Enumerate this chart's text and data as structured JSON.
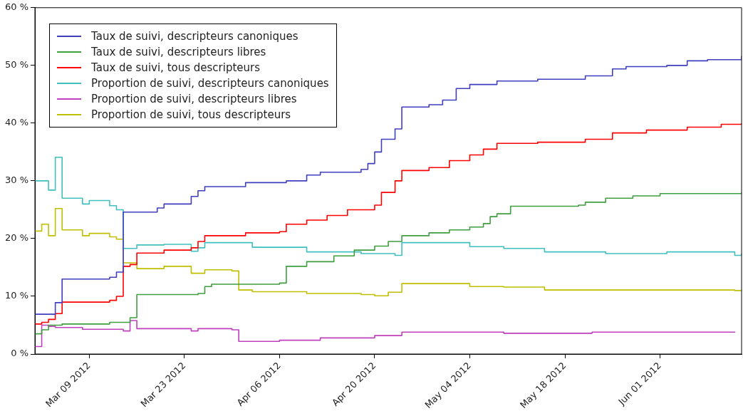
{
  "chart_data": {
    "type": "step",
    "legend": "top left",
    "line_style": "solid",
    "grid": false,
    "xlim": [
      "2012-03-01",
      "2012-06-13"
    ],
    "xticks": [
      {
        "value": "2012-03-09",
        "label": "Mar 09 2012"
      },
      {
        "value": "2012-03-23",
        "label": "Mar 23 2012"
      },
      {
        "value": "2012-04-06",
        "label": "Apr 06 2012"
      },
      {
        "value": "2012-04-20",
        "label": "Apr 20 2012"
      },
      {
        "value": "2012-05-04",
        "label": "May 04 2012"
      },
      {
        "value": "2012-05-18",
        "label": "May 18 2012"
      },
      {
        "value": "2012-06-01",
        "label": "Jun 01 2012"
      }
    ],
    "ylim": [
      0,
      60
    ],
    "yticks": [
      {
        "value": 0,
        "label": "0 %"
      },
      {
        "value": 10,
        "label": "10 %"
      },
      {
        "value": 20,
        "label": "20 %"
      },
      {
        "value": 30,
        "label": "30 %"
      },
      {
        "value": 40,
        "label": "40 %"
      },
      {
        "value": 50,
        "label": "50 %"
      },
      {
        "value": 60,
        "label": "60 %"
      }
    ],
    "series": [
      {
        "name": "Taux de suivi, descripteurs canoniques",
        "color": "#3f3fbf",
        "x": [
          "2012-03-01",
          "2012-03-04",
          "2012-03-05",
          "2012-03-12",
          "2012-03-13",
          "2012-03-14",
          "2012-03-19",
          "2012-03-20",
          "2012-03-24",
          "2012-03-25",
          "2012-03-26",
          "2012-04-01",
          "2012-04-07",
          "2012-04-10",
          "2012-04-12",
          "2012-04-18",
          "2012-04-19",
          "2012-04-20",
          "2012-04-21",
          "2012-04-23",
          "2012-04-24",
          "2012-04-28",
          "2012-04-30",
          "2012-05-02",
          "2012-05-04",
          "2012-05-08",
          "2012-05-14",
          "2012-05-21",
          "2012-05-25",
          "2012-05-27",
          "2012-06-02",
          "2012-06-05",
          "2012-06-08",
          "2012-06-13"
        ],
        "values": [
          6.9,
          8.9,
          13.0,
          13.3,
          14.2,
          24.6,
          25.3,
          26.0,
          27.3,
          28.3,
          29.0,
          29.7,
          30.0,
          31.0,
          31.5,
          32.0,
          33.0,
          35.0,
          37.2,
          39.0,
          42.8,
          43.2,
          44.0,
          46.0,
          46.7,
          47.3,
          47.6,
          48.2,
          49.4,
          49.8,
          50.0,
          50.8,
          51.0,
          51.6
        ]
      },
      {
        "name": "Taux de suivi, descripteurs libres",
        "color": "#3f9f3f",
        "x": [
          "2012-03-01",
          "2012-03-02",
          "2012-03-03",
          "2012-03-05",
          "2012-03-12",
          "2012-03-15",
          "2012-03-16",
          "2012-03-25",
          "2012-03-26",
          "2012-03-27",
          "2012-04-06",
          "2012-04-07",
          "2012-04-10",
          "2012-04-14",
          "2012-04-17",
          "2012-04-20",
          "2012-04-22",
          "2012-04-24",
          "2012-04-28",
          "2012-05-01",
          "2012-05-04",
          "2012-05-06",
          "2012-05-07",
          "2012-05-08",
          "2012-05-10",
          "2012-05-20",
          "2012-05-21",
          "2012-05-24",
          "2012-05-28",
          "2012-06-01",
          "2012-06-13"
        ],
        "values": [
          3.5,
          4.2,
          5.0,
          5.2,
          5.5,
          6.3,
          10.3,
          10.5,
          11.7,
          12.1,
          12.3,
          15.2,
          16.0,
          17.0,
          18.0,
          18.7,
          19.5,
          20.5,
          21.0,
          21.5,
          22.0,
          22.6,
          23.8,
          24.3,
          25.6,
          25.8,
          26.3,
          27.0,
          27.4,
          27.8,
          28.0
        ]
      },
      {
        "name": "Taux de suivi, tous descripteurs",
        "color": "#ff0000",
        "x": [
          "2012-03-01",
          "2012-03-02",
          "2012-03-03",
          "2012-03-04",
          "2012-03-05",
          "2012-03-12",
          "2012-03-13",
          "2012-03-14",
          "2012-03-15",
          "2012-03-16",
          "2012-03-20",
          "2012-03-24",
          "2012-03-25",
          "2012-03-26",
          "2012-04-01",
          "2012-04-06",
          "2012-04-07",
          "2012-04-10",
          "2012-04-13",
          "2012-04-16",
          "2012-04-20",
          "2012-04-21",
          "2012-04-23",
          "2012-04-24",
          "2012-04-28",
          "2012-05-01",
          "2012-05-04",
          "2012-05-06",
          "2012-05-08",
          "2012-05-14",
          "2012-05-21",
          "2012-05-25",
          "2012-05-30",
          "2012-06-05",
          "2012-06-10",
          "2012-06-13"
        ],
        "values": [
          5.2,
          5.5,
          6.0,
          7.0,
          9.0,
          9.3,
          10.0,
          15.2,
          15.5,
          17.5,
          18.0,
          18.4,
          19.5,
          20.5,
          21.0,
          21.2,
          22.5,
          23.2,
          24.0,
          25.0,
          25.8,
          28.0,
          30.0,
          31.8,
          32.3,
          33.5,
          34.5,
          35.5,
          36.5,
          36.7,
          37.2,
          38.3,
          38.8,
          39.3,
          39.8,
          40.0
        ]
      },
      {
        "name": "Proportion de suivi, descripteurs canoniques",
        "color": "#40bfbf",
        "x": [
          "2012-03-01",
          "2012-03-03",
          "2012-03-04",
          "2012-03-05",
          "2012-03-08",
          "2012-03-09",
          "2012-03-12",
          "2012-03-13",
          "2012-03-14",
          "2012-03-16",
          "2012-03-20",
          "2012-03-24",
          "2012-03-25",
          "2012-03-26",
          "2012-04-02",
          "2012-04-10",
          "2012-04-18",
          "2012-04-23",
          "2012-04-24",
          "2012-05-04",
          "2012-05-09",
          "2012-05-15",
          "2012-05-24",
          "2012-06-02",
          "2012-06-12",
          "2012-06-13"
        ],
        "values": [
          30.0,
          28.4,
          34.1,
          27.0,
          26.0,
          26.6,
          25.7,
          25.0,
          18.3,
          18.9,
          19.0,
          17.8,
          18.4,
          19.3,
          18.5,
          17.7,
          17.4,
          17.1,
          19.3,
          18.6,
          18.3,
          17.7,
          17.4,
          17.7,
          17.1,
          17.4
        ]
      },
      {
        "name": "Proportion de suivi, descripteurs libres",
        "color": "#bf40bf",
        "x": [
          "2012-03-01",
          "2012-03-02",
          "2012-03-03",
          "2012-03-04",
          "2012-03-08",
          "2012-03-14",
          "2012-03-15",
          "2012-03-16",
          "2012-03-24",
          "2012-03-25",
          "2012-03-30",
          "2012-03-31",
          "2012-04-06",
          "2012-04-12",
          "2012-04-20",
          "2012-04-24",
          "2012-05-09",
          "2012-05-22",
          "2012-06-12"
        ],
        "values": [
          1.3,
          5.0,
          4.8,
          4.6,
          4.3,
          4.0,
          5.8,
          4.4,
          4.0,
          4.4,
          4.2,
          2.2,
          2.4,
          2.8,
          3.2,
          3.8,
          3.6,
          3.8,
          3.7
        ]
      },
      {
        "name": "Proportion de suivi, tous descripteurs",
        "color": "#bfbf00",
        "x": [
          "2012-03-01",
          "2012-03-02",
          "2012-03-03",
          "2012-03-04",
          "2012-03-05",
          "2012-03-08",
          "2012-03-09",
          "2012-03-12",
          "2012-03-13",
          "2012-03-14",
          "2012-03-16",
          "2012-03-20",
          "2012-03-24",
          "2012-03-26",
          "2012-03-30",
          "2012-03-31",
          "2012-04-02",
          "2012-04-10",
          "2012-04-18",
          "2012-04-20",
          "2012-04-22",
          "2012-04-24",
          "2012-05-04",
          "2012-05-09",
          "2012-05-15",
          "2012-06-02",
          "2012-06-12",
          "2012-06-13"
        ],
        "values": [
          21.3,
          22.5,
          20.5,
          25.2,
          21.5,
          20.5,
          20.9,
          20.3,
          19.9,
          15.8,
          14.8,
          15.2,
          14.0,
          14.6,
          14.4,
          11.1,
          10.8,
          10.5,
          10.3,
          10.1,
          10.7,
          12.2,
          11.7,
          11.6,
          11.1,
          11.1,
          11.0,
          11.1
        ]
      }
    ]
  }
}
